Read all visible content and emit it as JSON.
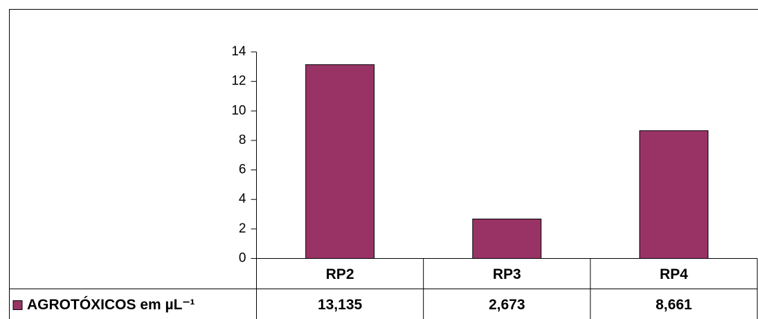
{
  "chart_data": {
    "type": "bar",
    "categories": [
      "RP2",
      "RP3",
      "RP4"
    ],
    "series": [
      {
        "name": "AGROTÓXICOS em µL⁻¹",
        "color": "#993366",
        "values": [
          13.135,
          2.673,
          8.661
        ],
        "value_labels": [
          "13,135",
          "2,673",
          "8,661"
        ]
      }
    ],
    "ylim": [
      0,
      14
    ],
    "yticks": [
      0,
      2,
      4,
      6,
      8,
      10,
      12,
      14
    ],
    "legend": "data-table"
  }
}
